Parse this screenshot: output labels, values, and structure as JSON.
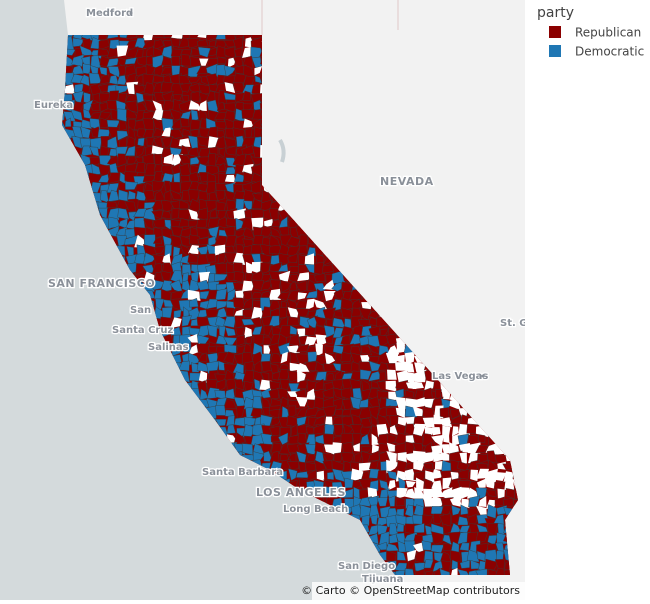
{
  "legend": {
    "title": "party",
    "items": [
      {
        "name": "Republican",
        "color": "#8b0000"
      },
      {
        "name": "Democratic",
        "color": "#1f77b4"
      }
    ]
  },
  "map_labels": [
    "Medford",
    "Eureka",
    "NEVADA",
    "SAN FRANCISCO",
    "San",
    "Santa Cruz",
    "Salinas",
    "Las Vegas",
    "St. G",
    "Santa Barbara",
    "LOS ANGELES",
    "Long Beach",
    "San Diego",
    "Tijuana"
  ],
  "attribution": "© Carto © OpenStreetMap contributors"
}
